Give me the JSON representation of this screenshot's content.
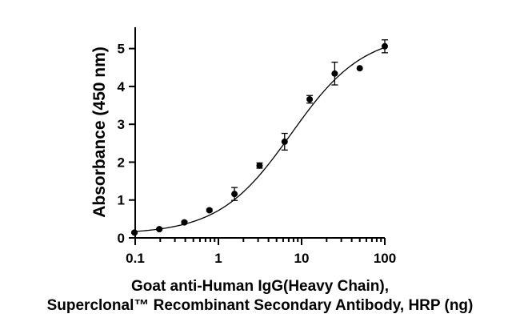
{
  "chart_data": {
    "type": "scatter",
    "xlabel_line1": "Goat anti-Human IgG(Heavy Chain),",
    "xlabel_line2": "Superclonal™ Recombinant Secondary Antibody, HRP (ng)",
    "ylabel": "Absorbance (450 nm)",
    "x_scale": "log",
    "xlim": [
      0.1,
      100
    ],
    "ylim": [
      0,
      5.5
    ],
    "x_ticks": [
      0.1,
      1,
      10,
      100
    ],
    "x_tick_labels": [
      "0.1",
      "1",
      "10",
      "100"
    ],
    "y_ticks": [
      0,
      1,
      2,
      3,
      4,
      5
    ],
    "y_tick_labels": [
      "0",
      "1",
      "2",
      "3",
      "4",
      "5"
    ],
    "grid": false,
    "series": [
      {
        "points": [
          {
            "x": 0.098,
            "y": 0.14,
            "err": 0.02
          },
          {
            "x": 0.195,
            "y": 0.23,
            "err": 0.02
          },
          {
            "x": 0.39,
            "y": 0.41,
            "err": 0.03
          },
          {
            "x": 0.78,
            "y": 0.73,
            "err": 0.03
          },
          {
            "x": 1.56,
            "y": 1.16,
            "err": 0.17
          },
          {
            "x": 3.125,
            "y": 1.91,
            "err": 0.07
          },
          {
            "x": 6.25,
            "y": 2.54,
            "err": 0.22
          },
          {
            "x": 12.5,
            "y": 3.66,
            "err": 0.1
          },
          {
            "x": 25,
            "y": 4.34,
            "err": 0.3
          },
          {
            "x": 50,
            "y": 4.48,
            "err": 0.0
          },
          {
            "x": 100,
            "y": 5.06,
            "err": 0.17
          }
        ]
      }
    ],
    "fit_curve": {
      "model": "4PL",
      "bottom": 0.1,
      "top": 5.4,
      "ec50": 7.5,
      "hill": 1.0
    }
  }
}
